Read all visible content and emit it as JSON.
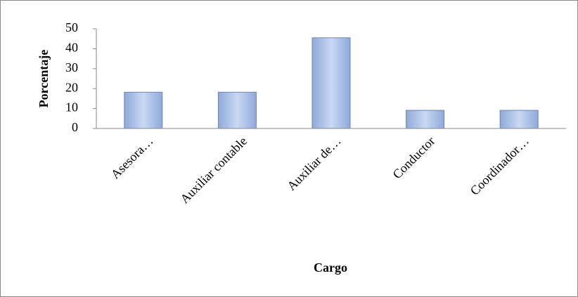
{
  "chart_data": {
    "type": "bar",
    "x_label": "Cargo",
    "y_label": "Porcentaje",
    "categories": [
      "Asesora…",
      "Auxiliar contable",
      "Auxiliar de…",
      "Conductor",
      "Coordinador…"
    ],
    "values": [
      18.2,
      18.2,
      45.5,
      9.1,
      9.1
    ],
    "color": "#a9c0ea",
    "ylim": [
      0,
      50
    ],
    "yticks": [
      0,
      10,
      20,
      30,
      40,
      50
    ],
    "grid": false
  }
}
